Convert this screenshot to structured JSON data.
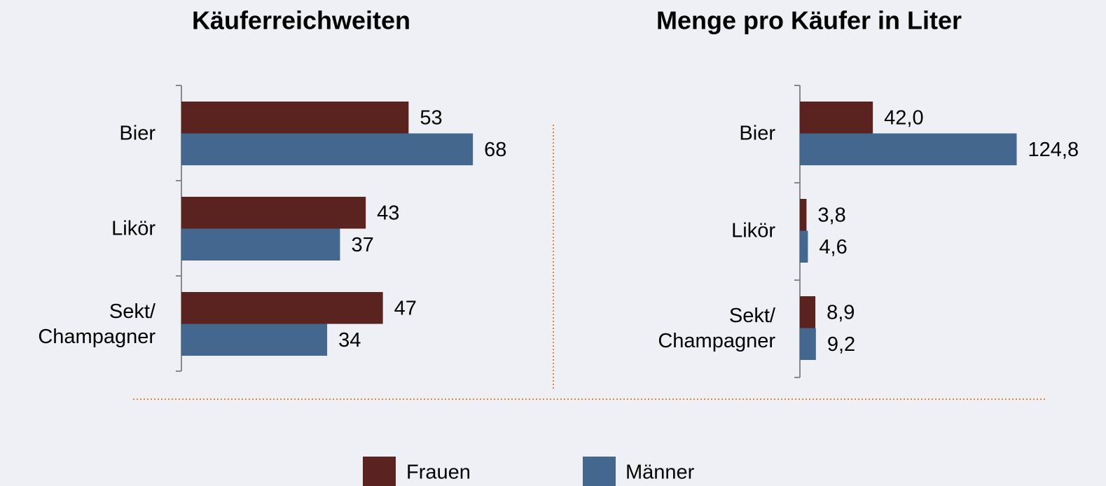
{
  "chart_data": [
    {
      "type": "bar",
      "orientation": "horizontal",
      "title": "Käuferreichweiten",
      "categories": [
        "Bier",
        "Likör",
        "Sekt/\nChampagner"
      ],
      "series": [
        {
          "name": "Frauen",
          "color": "#5a2320",
          "values": [
            53,
            43,
            47
          ]
        },
        {
          "name": "Männer",
          "color": "#43678f",
          "values": [
            68,
            37,
            34
          ]
        }
      ],
      "xlim": [
        0,
        100
      ]
    },
    {
      "type": "bar",
      "orientation": "horizontal",
      "title": "Menge pro Käufer in Liter",
      "categories": [
        "Bier",
        "Likör",
        "Sekt/\nChampagner"
      ],
      "series": [
        {
          "name": "Frauen",
          "color": "#5a2320",
          "values": [
            42.0,
            3.8,
            8.9
          ],
          "value_labels": [
            "42,0",
            "3,8",
            "8,9"
          ]
        },
        {
          "name": "Männer",
          "color": "#43678f",
          "values": [
            124.8,
            4.6,
            9.2
          ],
          "value_labels": [
            "124,8",
            "4,6",
            "9,2"
          ]
        }
      ],
      "xlim": [
        0,
        150
      ]
    }
  ]
}
